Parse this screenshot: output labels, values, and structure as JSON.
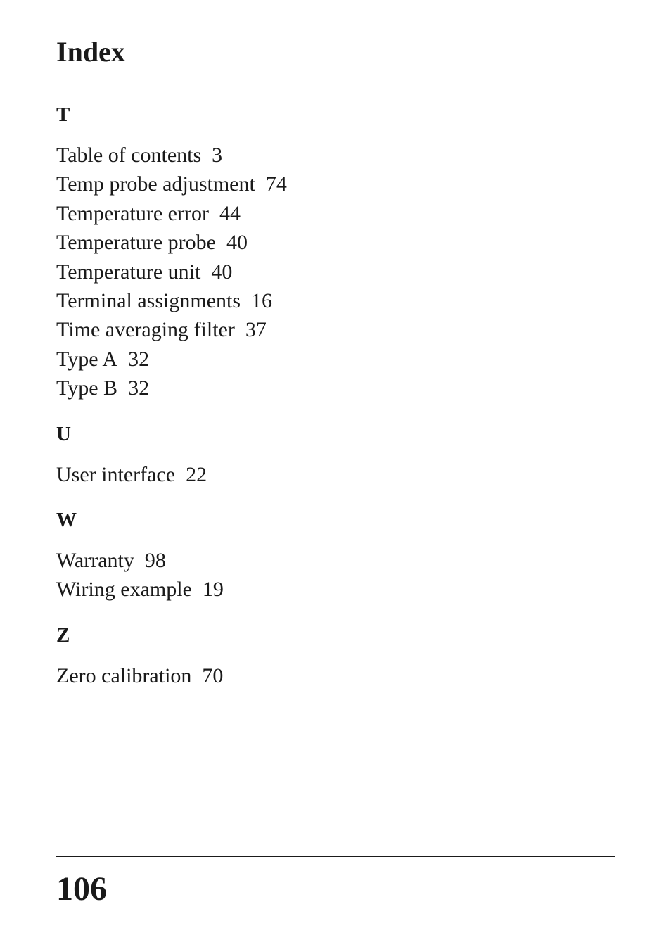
{
  "page": {
    "title": "Index",
    "page_number": "106",
    "background_color": "#ffffff",
    "text_color": "#1a1a1a",
    "title_fontsize": 40,
    "section_letter_fontsize": 29,
    "entry_fontsize": 30,
    "page_number_fontsize": 48
  },
  "sections": {
    "t": {
      "letter": "T",
      "entries": [
        {
          "term": "Table of contents",
          "page": "3"
        },
        {
          "term": "Temp probe adjustment",
          "page": "74"
        },
        {
          "term": "Temperature error",
          "page": "44"
        },
        {
          "term": "Temperature probe",
          "page": "40"
        },
        {
          "term": "Temperature unit",
          "page": "40"
        },
        {
          "term": "Terminal assignments",
          "page": "16"
        },
        {
          "term": "Time averaging filter",
          "page": "37"
        },
        {
          "term": "Type A",
          "page": "32"
        },
        {
          "term": "Type B",
          "page": "32"
        }
      ]
    },
    "u": {
      "letter": "U",
      "entries": [
        {
          "term": "User interface",
          "page": "22"
        }
      ]
    },
    "w": {
      "letter": "W",
      "entries": [
        {
          "term": "Warranty",
          "page": "98"
        },
        {
          "term": "Wiring example",
          "page": "19"
        }
      ]
    },
    "z": {
      "letter": "Z",
      "entries": [
        {
          "term": "Zero calibration",
          "page": "70"
        }
      ]
    }
  }
}
